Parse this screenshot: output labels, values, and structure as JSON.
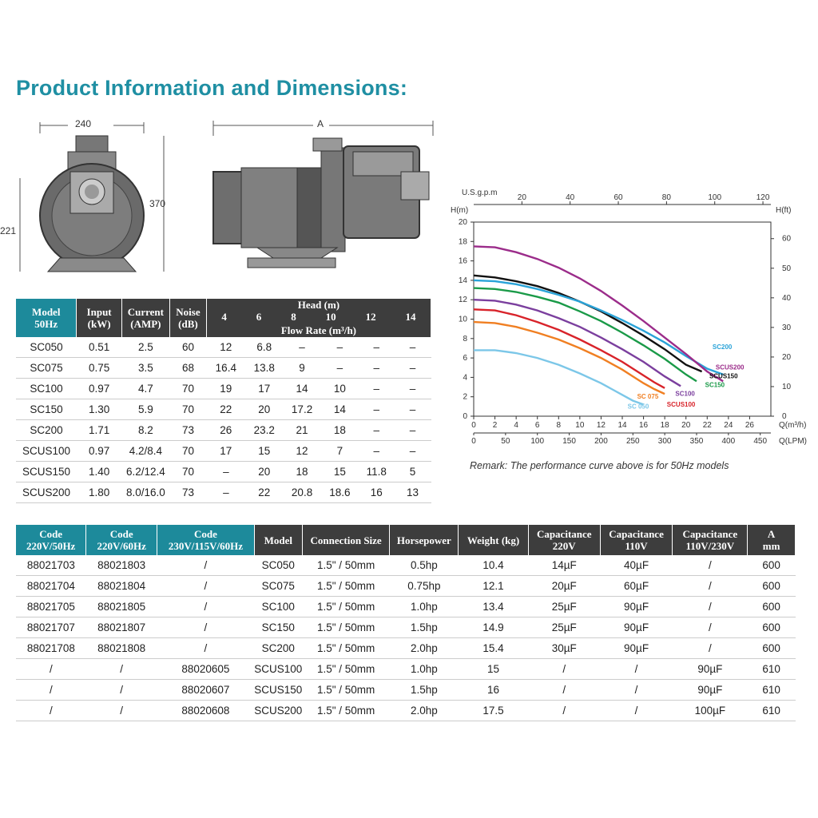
{
  "page": {
    "title": "Product Information and Dimensions:",
    "remark": "Remark: The performance curve above is for 50Hz models"
  },
  "dimensions": {
    "width": "240",
    "height": "370",
    "base_height": "221",
    "length": "A"
  },
  "spec_table": {
    "headers": {
      "model": "Model",
      "model_sub": "50Hz",
      "input": "Input",
      "input_sub": "(kW)",
      "current": "Current",
      "current_sub": "(AMP)",
      "noise": "Noise",
      "noise_sub": "(dB)",
      "head": "Head (m)",
      "flow": "Flow Rate (m³/h)",
      "heads": [
        "4",
        "6",
        "8",
        "10",
        "12",
        "14"
      ]
    },
    "rows": [
      [
        "SC050",
        "0.51",
        "2.5",
        "60",
        "12",
        "6.8",
        "–",
        "–",
        "–",
        "–"
      ],
      [
        "SC075",
        "0.75",
        "3.5",
        "68",
        "16.4",
        "13.8",
        "9",
        "–",
        "–",
        "–"
      ],
      [
        "SC100",
        "0.97",
        "4.7",
        "70",
        "19",
        "17",
        "14",
        "10",
        "–",
        "–"
      ],
      [
        "SC150",
        "1.30",
        "5.9",
        "70",
        "22",
        "20",
        "17.2",
        "14",
        "–",
        "–"
      ],
      [
        "SC200",
        "1.71",
        "8.2",
        "73",
        "26",
        "23.2",
        "21",
        "18",
        "–",
        "–"
      ],
      [
        "SCUS100",
        "0.97",
        "4.2/8.4",
        "70",
        "17",
        "15",
        "12",
        "7",
        "–",
        "–"
      ],
      [
        "SCUS150",
        "1.40",
        "6.2/12.4",
        "70",
        "–",
        "20",
        "18",
        "15",
        "11.8",
        "5"
      ],
      [
        "SCUS200",
        "1.80",
        "8.0/16.0",
        "73",
        "–",
        "22",
        "20.8",
        "18.6",
        "16",
        "13"
      ]
    ]
  },
  "code_table": {
    "headers": [
      [
        "Code",
        "220V/50Hz"
      ],
      [
        "Code",
        "220V/60Hz"
      ],
      [
        "Code",
        "230V/115V/60Hz"
      ],
      [
        "Model",
        ""
      ],
      [
        "Connection Size",
        ""
      ],
      [
        "Horsepower",
        ""
      ],
      [
        "Weight (kg)",
        ""
      ],
      [
        "Capacitance",
        "220V"
      ],
      [
        "Capacitance",
        "110V"
      ],
      [
        "Capacitance",
        "110V/230V"
      ],
      [
        "A",
        "mm"
      ]
    ],
    "rows": [
      [
        "88021703",
        "88021803",
        "/",
        "SC050",
        "1.5\" / 50mm",
        "0.5hp",
        "10.4",
        "14µF",
        "40µF",
        "/",
        "600"
      ],
      [
        "88021704",
        "88021804",
        "/",
        "SC075",
        "1.5\" / 50mm",
        "0.75hp",
        "12.1",
        "20µF",
        "60µF",
        "/",
        "600"
      ],
      [
        "88021705",
        "88021805",
        "/",
        "SC100",
        "1.5\" / 50mm",
        "1.0hp",
        "13.4",
        "25µF",
        "90µF",
        "/",
        "600"
      ],
      [
        "88021707",
        "88021807",
        "/",
        "SC150",
        "1.5\" / 50mm",
        "1.5hp",
        "14.9",
        "25µF",
        "90µF",
        "/",
        "600"
      ],
      [
        "88021708",
        "88021808",
        "/",
        "SC200",
        "1.5\" / 50mm",
        "2.0hp",
        "15.4",
        "30µF",
        "90µF",
        "/",
        "600"
      ],
      [
        "/",
        "/",
        "88020605",
        "SCUS100",
        "1.5\" / 50mm",
        "1.0hp",
        "15",
        "/",
        "/",
        "90µF",
        "610"
      ],
      [
        "/",
        "/",
        "88020607",
        "SCUS150",
        "1.5\" / 50mm",
        "1.5hp",
        "16",
        "/",
        "/",
        "90µF",
        "610"
      ],
      [
        "/",
        "/",
        "88020608",
        "SCUS200",
        "1.5\" / 50mm",
        "2.0hp",
        "17.5",
        "/",
        "/",
        "100µF",
        "610"
      ]
    ]
  },
  "chart_data": {
    "type": "line",
    "title": "",
    "axes": {
      "left_label": "H(m)",
      "left_range": [
        0,
        20
      ],
      "left_ticks": [
        0,
        2,
        4,
        6,
        8,
        10,
        12,
        14,
        16,
        18,
        20
      ],
      "right_label": "H(ft)",
      "right_range": [
        0,
        65.6
      ],
      "right_ticks": [
        0,
        10,
        20,
        30,
        40,
        50,
        60
      ],
      "top_label": "U.S.g.p.m",
      "top_ticks": [
        20,
        40,
        60,
        80,
        100,
        120
      ],
      "bottom_label": "Q(m³/h)",
      "bottom_range": [
        0,
        28
      ],
      "bottom_ticks": [
        0,
        2,
        4,
        6,
        8,
        10,
        12,
        14,
        16,
        18,
        20,
        22,
        24,
        26
      ],
      "lpm_label": "Q(LPM)",
      "lpm_ticks": [
        0,
        50,
        100,
        150,
        200,
        250,
        300,
        350,
        400,
        450
      ]
    },
    "grid": false,
    "series": [
      {
        "name": "SC 050",
        "color": "#7cc7e8",
        "x": [
          0,
          2,
          4,
          6,
          8,
          10,
          12,
          13,
          14,
          15,
          16
        ],
        "y": [
          6.8,
          6.8,
          6.5,
          6.0,
          5.3,
          4.4,
          3.4,
          2.8,
          2.2,
          1.6,
          1.2
        ]
      },
      {
        "name": "SC 075",
        "color": "#f07f22",
        "x": [
          0,
          2,
          4,
          6,
          8,
          10,
          12,
          14,
          15,
          16,
          17,
          18
        ],
        "y": [
          9.7,
          9.6,
          9.2,
          8.6,
          7.9,
          7.0,
          6.0,
          4.8,
          4.1,
          3.4,
          2.8,
          2.3
        ]
      },
      {
        "name": "SCUS100",
        "color": "#d8232a",
        "x": [
          0,
          2,
          4,
          6,
          8,
          10,
          12,
          14,
          16,
          17,
          18
        ],
        "y": [
          11.0,
          10.9,
          10.4,
          9.7,
          8.9,
          7.9,
          6.8,
          5.6,
          4.2,
          3.5,
          2.9
        ]
      },
      {
        "name": "SC100",
        "color": "#7b3f9e",
        "x": [
          0,
          2,
          4,
          6,
          8,
          10,
          12,
          14,
          16,
          18,
          19.5
        ],
        "y": [
          12.0,
          11.9,
          11.5,
          10.9,
          10.1,
          9.2,
          8.1,
          6.9,
          5.6,
          4.1,
          3.1
        ]
      },
      {
        "name": "SC150",
        "color": "#1a9a48",
        "x": [
          0,
          2,
          4,
          6,
          8,
          10,
          12,
          14,
          16,
          18,
          20,
          21
        ],
        "y": [
          13.2,
          13.1,
          12.8,
          12.3,
          11.7,
          10.8,
          9.8,
          8.6,
          7.3,
          5.9,
          4.3,
          3.6
        ]
      },
      {
        "name": "SCUS150",
        "color": "#111111",
        "x": [
          0,
          2,
          4,
          6,
          8,
          10,
          12,
          14,
          16,
          18,
          20,
          21.5
        ],
        "y": [
          14.5,
          14.3,
          13.9,
          13.4,
          12.7,
          11.8,
          10.8,
          9.6,
          8.3,
          6.9,
          5.3,
          4.6
        ]
      },
      {
        "name": "SC200",
        "color": "#2aa3d8",
        "x": [
          0,
          2,
          4,
          6,
          8,
          10,
          12,
          14,
          16,
          18,
          20,
          22,
          23.5
        ],
        "y": [
          14.0,
          13.9,
          13.6,
          13.1,
          12.5,
          11.8,
          10.9,
          9.9,
          8.8,
          7.6,
          6.2,
          4.9,
          4.3
        ]
      },
      {
        "name": "SCUS200",
        "color": "#9b2c8a",
        "x": [
          0,
          2,
          4,
          6,
          8,
          10,
          12,
          14,
          16,
          18,
          20,
          22,
          23.5
        ],
        "y": [
          17.5,
          17.4,
          16.9,
          16.2,
          15.3,
          14.2,
          12.9,
          11.4,
          9.8,
          8.1,
          6.4,
          4.6,
          3.6
        ]
      }
    ],
    "labels": [
      {
        "text": "SC200",
        "color": "#2aa3d8",
        "x": 22.5,
        "y": 6.9
      },
      {
        "text": "SCUS200",
        "color": "#9b2c8a",
        "x": 22.8,
        "y": 4.8
      },
      {
        "text": "SCUS150",
        "color": "#111111",
        "x": 22.2,
        "y": 3.9
      },
      {
        "text": "SC150",
        "color": "#1a9a48",
        "x": 21.8,
        "y": 3.0
      },
      {
        "text": "SC100",
        "color": "#7b3f9e",
        "x": 19.0,
        "y": 2.1
      },
      {
        "text": "SC 075",
        "color": "#f07f22",
        "x": 15.4,
        "y": 1.8
      },
      {
        "text": "SCUS100",
        "color": "#d8232a",
        "x": 18.2,
        "y": 1.0
      },
      {
        "text": "SC 050",
        "color": "#7cc7e8",
        "x": 14.5,
        "y": 0.8
      }
    ]
  }
}
